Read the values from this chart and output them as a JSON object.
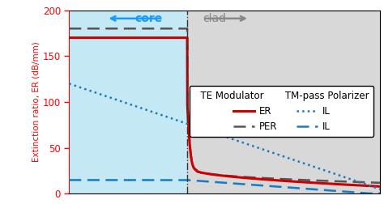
{
  "title": "",
  "ylabel": "Extinction ratio, ER (dB/mm)",
  "ylim": [
    0,
    200
  ],
  "yticks": [
    0,
    50,
    100,
    150,
    200
  ],
  "xlim": [
    0,
    10
  ],
  "boundary_x": 3.8,
  "core_label": "core",
  "clad_label": "clad",
  "core_color": "#c5e8f5",
  "clad_color": "#d8d8d8",
  "legend_header1": "TE Modulator",
  "legend_header2": "TM-pass Polarizer",
  "legend_er_label": "ER",
  "legend_il_label": "IL",
  "legend_per_label": "PER",
  "legend_il2_label": "IL",
  "er_color": "#cc0000",
  "per_color": "#555555",
  "il_te_color": "#1a7abf",
  "il_tm_color": "#1a7abf",
  "boundary_color": "#555555"
}
